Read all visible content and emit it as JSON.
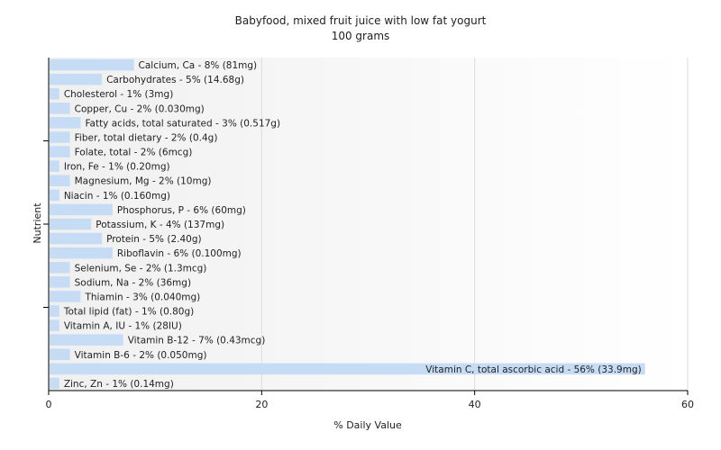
{
  "chart_data": {
    "type": "bar",
    "orientation": "horizontal",
    "title": "Babyfood, mixed fruit juice with low fat yogurt",
    "subtitle": "100 grams",
    "xlabel": "% Daily Value",
    "ylabel": "Nutrient",
    "xlim": [
      0,
      60
    ],
    "xticks": [
      0,
      20,
      40,
      60
    ],
    "bar_color": "#c6dcf5",
    "grid": true,
    "categories": [
      "Calcium, Ca",
      "Carbohydrates",
      "Cholesterol",
      "Copper, Cu",
      "Fatty acids, total saturated",
      "Fiber, total dietary",
      "Folate, total",
      "Iron, Fe",
      "Magnesium, Mg",
      "Niacin",
      "Phosphorus, P",
      "Potassium, K",
      "Protein",
      "Riboflavin",
      "Selenium, Se",
      "Sodium, Na",
      "Thiamin",
      "Total lipid (fat)",
      "Vitamin A, IU",
      "Vitamin B-12",
      "Vitamin B-6",
      "Vitamin C, total ascorbic acid",
      "Zinc, Zn"
    ],
    "values": [
      8,
      5,
      1,
      2,
      3,
      2,
      2,
      1,
      2,
      1,
      6,
      4,
      5,
      6,
      2,
      2,
      3,
      1,
      1,
      7,
      2,
      56,
      1
    ],
    "labels": [
      "Calcium, Ca - 8% (81mg)",
      "Carbohydrates - 5% (14.68g)",
      "Cholesterol - 1% (3mg)",
      "Copper, Cu - 2% (0.030mg)",
      "Fatty acids, total saturated - 3% (0.517g)",
      "Fiber, total dietary - 2% (0.4g)",
      "Folate, total - 2% (6mcg)",
      "Iron, Fe - 1% (0.20mg)",
      "Magnesium, Mg - 2% (10mg)",
      "Niacin - 1% (0.160mg)",
      "Phosphorus, P - 6% (60mg)",
      "Potassium, K - 4% (137mg)",
      "Protein - 5% (2.40g)",
      "Riboflavin - 6% (0.100mg)",
      "Selenium, Se - 2% (1.3mcg)",
      "Sodium, Na - 2% (36mg)",
      "Thiamin - 3% (0.040mg)",
      "Total lipid (fat) - 1% (0.80g)",
      "Vitamin A, IU - 1% (28IU)",
      "Vitamin B-12 - 7% (0.43mcg)",
      "Vitamin B-6 - 2% (0.050mg)",
      "Vitamin C, total ascorbic acid - 56% (33.9mg)",
      "Zinc, Zn - 1% (0.14mg)"
    ]
  }
}
